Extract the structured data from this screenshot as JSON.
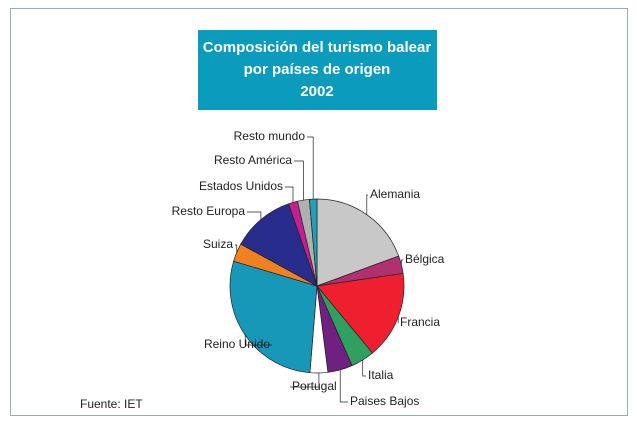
{
  "chart_data": {
    "type": "pie",
    "title": [
      "Composición del turismo balear",
      "por países de origen",
      "2002"
    ],
    "source": "Fuente: IET",
    "categories": [
      "Alemania",
      "Bélgica",
      "Francia",
      "Italia",
      "Paises Bajos",
      "Portugal",
      "Reino Unido",
      "Suiza",
      "Resto Europa",
      "Estados Unidos",
      "Resto América",
      "Resto mundo"
    ],
    "values": [
      19.4,
      3.3,
      16.3,
      4.4,
      4.6,
      3.3,
      28.3,
      3.4,
      11.7,
      1.7,
      2.2,
      1.4
    ],
    "colors": [
      "#c8c8c8",
      "#b03070",
      "#ee2030",
      "#30a060",
      "#702080",
      "#ffffff",
      "#1898b8",
      "#f08020",
      "#282c8c",
      "#c02090",
      "#b0b0b0",
      "#20a0b0"
    ]
  }
}
